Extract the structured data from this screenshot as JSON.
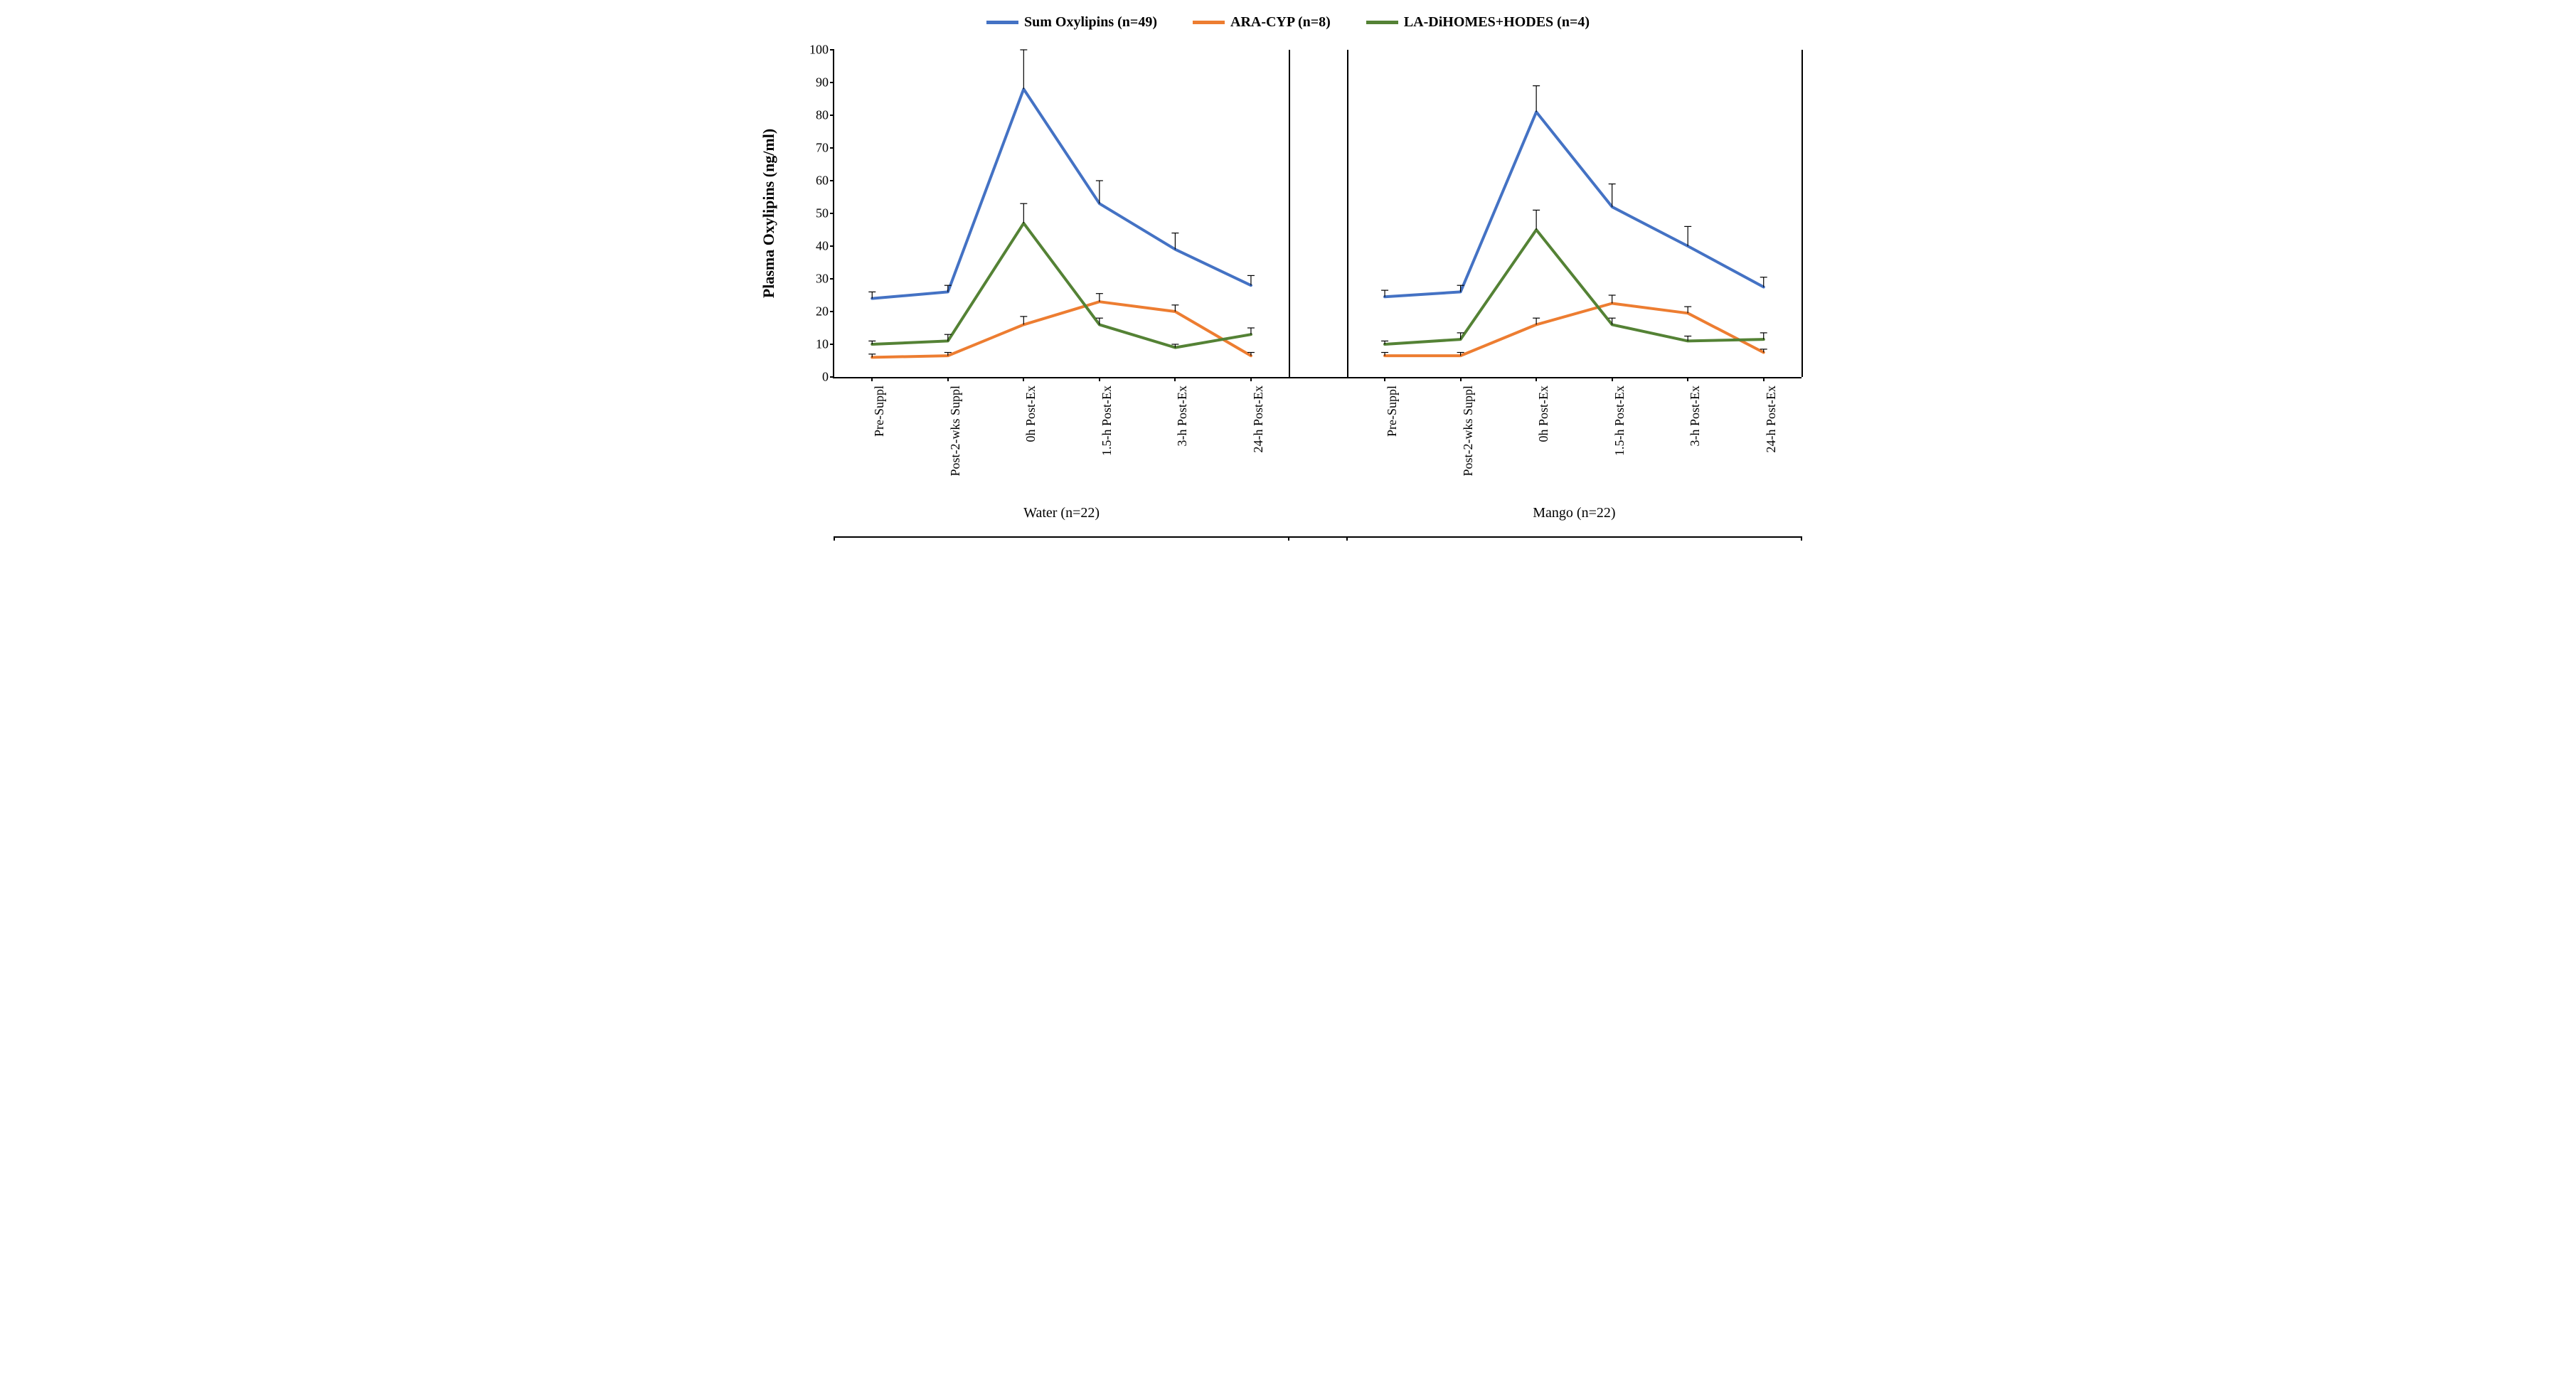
{
  "legend": {
    "items": [
      {
        "label": "Sum Oxylipins (n=49)",
        "color": "#4472c4"
      },
      {
        "label": "ARA-CYP (n=8)",
        "color": "#ed7d31"
      },
      {
        "label": "LA-DiHOMES+HODES (n=4)",
        "color": "#548235"
      }
    ],
    "fontsize": 20,
    "swatch_width": 45,
    "swatch_height": 5
  },
  "y_axis": {
    "title": "Plasma Oxylipins  (ng/ml)",
    "min": 0,
    "max": 100,
    "tick_step": 10,
    "label_fontsize": 18,
    "title_fontsize": 22
  },
  "x_axis": {
    "categories": [
      "Pre-Suppl",
      "Post-2-wks Suppl",
      "0h Post-Ex",
      "1.5-h Post-Ex",
      "3-h Post-Ex",
      "24-h Post-Ex"
    ],
    "label_fontsize": 18,
    "rotation_deg": -90
  },
  "panels": [
    {
      "label": "Water (n=22)"
    },
    {
      "label": "Mango (n=22)"
    }
  ],
  "series": [
    {
      "name": "Sum Oxylipins",
      "color": "#4472c4",
      "line_width": 4,
      "data": [
        {
          "y_values": [
            24,
            26,
            88,
            53,
            39,
            28
          ],
          "y_err": [
            2,
            2,
            12,
            7,
            5,
            3
          ]
        },
        {
          "y_values": [
            24.5,
            26,
            81,
            52,
            40,
            27.5
          ],
          "y_err": [
            2,
            2,
            8,
            7,
            6,
            3
          ]
        }
      ]
    },
    {
      "name": "ARA-CYP",
      "color": "#ed7d31",
      "line_width": 4,
      "data": [
        {
          "y_values": [
            6,
            6.5,
            16,
            23,
            20,
            6.5
          ],
          "y_err": [
            1,
            1,
            2.5,
            2.5,
            2,
            1
          ]
        },
        {
          "y_values": [
            6.5,
            6.5,
            16,
            22.5,
            19.5,
            7.5
          ],
          "y_err": [
            1,
            1,
            2,
            2.5,
            2,
            1
          ]
        }
      ]
    },
    {
      "name": "LA-DiHOMES+HODES",
      "color": "#548235",
      "line_width": 4,
      "data": [
        {
          "y_values": [
            10,
            11,
            47,
            16,
            9,
            13
          ],
          "y_err": [
            1,
            2,
            6,
            2,
            1,
            2
          ]
        },
        {
          "y_values": [
            10,
            11.5,
            45,
            16,
            11,
            11.5
          ],
          "y_err": [
            1,
            2,
            6,
            2,
            1.5,
            2
          ]
        }
      ]
    }
  ],
  "errorbar": {
    "color": "#000000",
    "cap_width": 10,
    "line_width": 1.2
  },
  "plot": {
    "background": "#ffffff",
    "axis_color": "#000000",
    "gap_between_panels_pct": 6
  }
}
